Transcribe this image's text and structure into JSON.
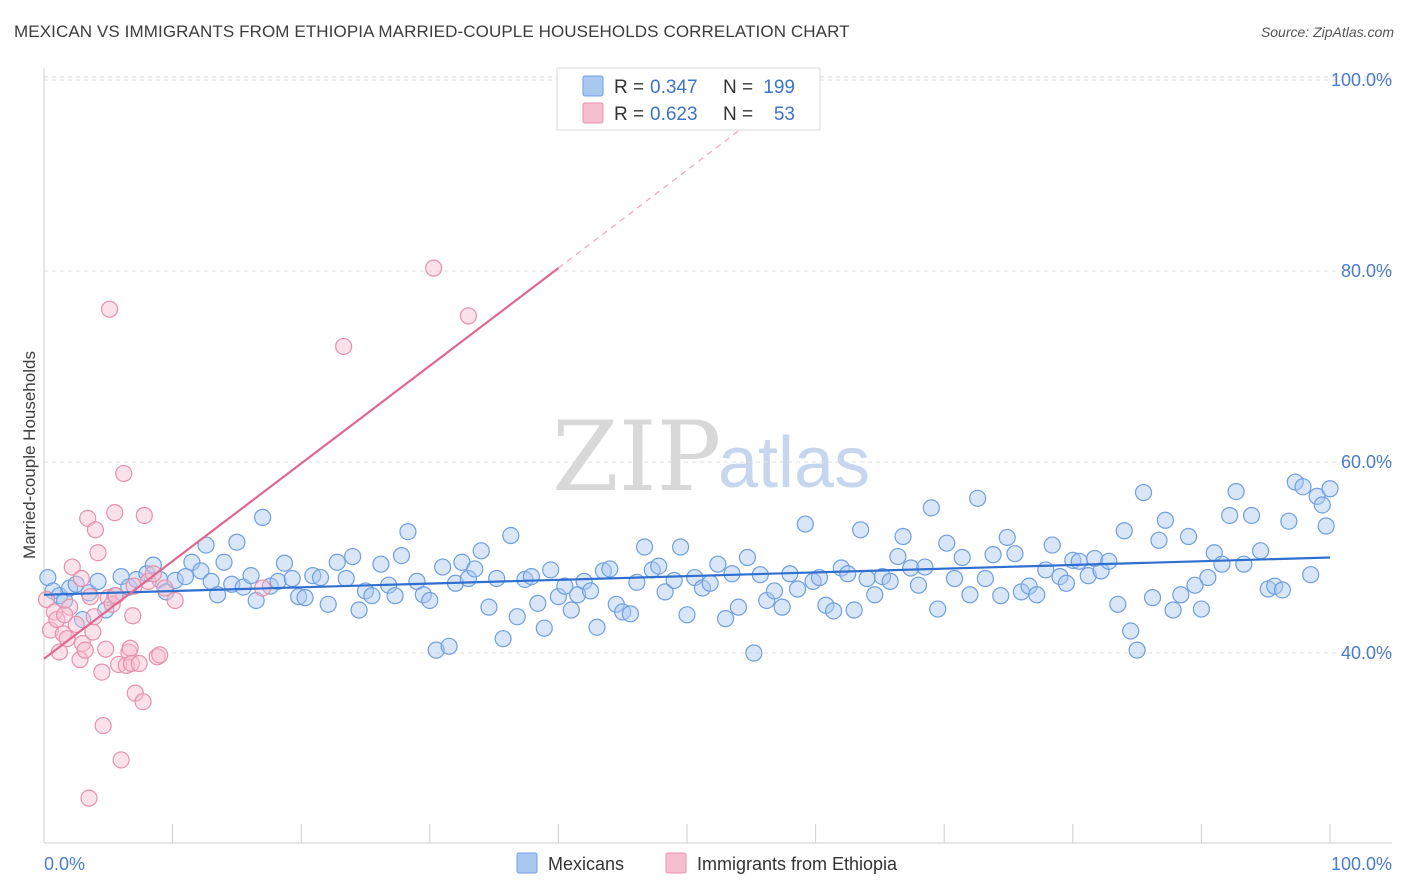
{
  "header": {
    "title": "MEXICAN VS IMMIGRANTS FROM ETHIOPIA MARRIED-COUPLE HOUSEHOLDS CORRELATION CHART",
    "source": "Source: ZipAtlas.com"
  },
  "watermark": {
    "zip": "ZIP",
    "atlas": "atlas"
  },
  "legend": {
    "rows": [
      {
        "r_label": "R =",
        "r_value": "0.347",
        "n_label": "N =",
        "n_value": "199",
        "color": "#a9c8f0",
        "border": "#6f9fe0"
      },
      {
        "r_label": "R =",
        "r_value": "0.623",
        "n_label": "N =",
        "n_value": "53",
        "color": "#f6bfd0",
        "border": "#e890aa"
      }
    ]
  },
  "bottom_legend": [
    {
      "label": "Mexicans",
      "color": "#a9c8f0",
      "border": "#6f9fe0"
    },
    {
      "label": "Immigrants from Ethiopia",
      "color": "#f6bfd0",
      "border": "#e890aa"
    }
  ],
  "chart_data": {
    "type": "scatter",
    "ylabel": "Married-couple Households",
    "xlabel": "",
    "xlim": [
      0,
      100
    ],
    "ylim": [
      17,
      100
    ],
    "x_tick_labels": [
      "0.0%",
      "100.0%"
    ],
    "y_ticks": [
      40,
      60,
      80,
      100
    ],
    "y_tick_labels": [
      "40.0%",
      "60.0%",
      "80.0%",
      "100.0%"
    ],
    "grid": true,
    "legend_position": "top-center",
    "colors": {
      "mexicans": "#6f9fe0",
      "ethiopia": "#e890aa",
      "trend_blue": "#2f6fcf",
      "trend_pink": "#e0688f"
    },
    "series": [
      {
        "name": "Mexicans",
        "trend": {
          "x": [
            0,
            100
          ],
          "y": [
            46.1,
            50.0
          ]
        },
        "points": [
          [
            0.3,
            47.9
          ],
          [
            0.7,
            46.5
          ],
          [
            1.2,
            46.0
          ],
          [
            1.6,
            45.5
          ],
          [
            2.0,
            46.8
          ],
          [
            2.5,
            47.2
          ],
          [
            3.0,
            43.5
          ],
          [
            3.5,
            46.3
          ],
          [
            4.2,
            47.5
          ],
          [
            4.8,
            44.5
          ],
          [
            5.5,
            46.0
          ],
          [
            6.0,
            48.0
          ],
          [
            6.6,
            46.9
          ],
          [
            7.2,
            47.7
          ],
          [
            8.0,
            48.3
          ],
          [
            8.5,
            49.2
          ],
          [
            9.0,
            47.7
          ],
          [
            9.5,
            46.4
          ],
          [
            10.2,
            47.6
          ],
          [
            11.0,
            48.0
          ],
          [
            11.5,
            49.5
          ],
          [
            12.2,
            48.6
          ],
          [
            12.6,
            51.3
          ],
          [
            13.0,
            47.5
          ],
          [
            13.5,
            46.1
          ],
          [
            14.0,
            49.5
          ],
          [
            14.6,
            47.2
          ],
          [
            15.0,
            51.6
          ],
          [
            15.5,
            46.9
          ],
          [
            16.1,
            48.1
          ],
          [
            16.5,
            45.5
          ],
          [
            17.0,
            54.2
          ],
          [
            17.6,
            47.0
          ],
          [
            18.2,
            47.5
          ],
          [
            18.7,
            49.4
          ],
          [
            19.3,
            47.8
          ],
          [
            19.8,
            45.9
          ],
          [
            20.3,
            45.8
          ],
          [
            20.9,
            48.1
          ],
          [
            21.5,
            47.9
          ],
          [
            22.1,
            45.1
          ],
          [
            22.8,
            49.5
          ],
          [
            23.5,
            47.8
          ],
          [
            24.0,
            50.1
          ],
          [
            24.5,
            44.5
          ],
          [
            25.0,
            46.5
          ],
          [
            25.5,
            46.0
          ],
          [
            26.2,
            49.3
          ],
          [
            26.8,
            47.1
          ],
          [
            27.3,
            46.0
          ],
          [
            27.8,
            50.2
          ],
          [
            28.3,
            52.7
          ],
          [
            29.0,
            47.5
          ],
          [
            29.5,
            46.1
          ],
          [
            30.0,
            45.5
          ],
          [
            30.5,
            40.3
          ],
          [
            31.0,
            49.0
          ],
          [
            31.5,
            40.7
          ],
          [
            32.0,
            47.3
          ],
          [
            32.5,
            49.5
          ],
          [
            33.0,
            47.8
          ],
          [
            33.5,
            48.8
          ],
          [
            34.0,
            50.7
          ],
          [
            34.6,
            44.8
          ],
          [
            35.2,
            47.8
          ],
          [
            35.7,
            41.5
          ],
          [
            36.3,
            52.3
          ],
          [
            36.8,
            43.8
          ],
          [
            37.4,
            47.7
          ],
          [
            37.9,
            48.0
          ],
          [
            38.4,
            45.2
          ],
          [
            38.9,
            42.6
          ],
          [
            39.4,
            48.7
          ],
          [
            40.0,
            45.9
          ],
          [
            40.5,
            47.0
          ],
          [
            41.0,
            44.5
          ],
          [
            41.5,
            46.1
          ],
          [
            42.0,
            47.5
          ],
          [
            42.5,
            46.5
          ],
          [
            43.0,
            42.7
          ],
          [
            43.5,
            48.6
          ],
          [
            44.0,
            48.8
          ],
          [
            44.5,
            45.1
          ],
          [
            45.0,
            44.3
          ],
          [
            45.6,
            44.1
          ],
          [
            46.1,
            47.4
          ],
          [
            46.7,
            51.1
          ],
          [
            47.3,
            48.7
          ],
          [
            47.8,
            49.1
          ],
          [
            48.3,
            46.4
          ],
          [
            49.0,
            47.6
          ],
          [
            49.5,
            51.1
          ],
          [
            50.0,
            44.0
          ],
          [
            50.6,
            47.9
          ],
          [
            51.2,
            46.8
          ],
          [
            51.8,
            47.3
          ],
          [
            52.4,
            49.3
          ],
          [
            53.0,
            43.6
          ],
          [
            53.5,
            48.3
          ],
          [
            54.0,
            44.8
          ],
          [
            54.7,
            50.0
          ],
          [
            55.2,
            40.0
          ],
          [
            55.7,
            48.2
          ],
          [
            56.2,
            45.5
          ],
          [
            56.8,
            46.5
          ],
          [
            57.4,
            44.8
          ],
          [
            58.0,
            48.3
          ],
          [
            58.6,
            46.7
          ],
          [
            59.2,
            53.5
          ],
          [
            59.8,
            47.5
          ],
          [
            60.3,
            47.9
          ],
          [
            60.8,
            45.0
          ],
          [
            61.4,
            44.4
          ],
          [
            62.0,
            48.9
          ],
          [
            62.5,
            48.3
          ],
          [
            63.0,
            44.5
          ],
          [
            63.5,
            52.9
          ],
          [
            64.0,
            47.8
          ],
          [
            64.6,
            46.1
          ],
          [
            65.2,
            48.0
          ],
          [
            65.8,
            47.5
          ],
          [
            66.4,
            50.1
          ],
          [
            66.8,
            52.2
          ],
          [
            67.4,
            48.9
          ],
          [
            68.0,
            47.1
          ],
          [
            68.5,
            49.0
          ],
          [
            69.0,
            55.2
          ],
          [
            69.5,
            44.6
          ],
          [
            70.2,
            51.5
          ],
          [
            70.8,
            47.8
          ],
          [
            71.4,
            50.0
          ],
          [
            72.0,
            46.1
          ],
          [
            72.6,
            56.2
          ],
          [
            73.2,
            47.8
          ],
          [
            73.8,
            50.3
          ],
          [
            74.4,
            46.0
          ],
          [
            74.9,
            52.1
          ],
          [
            75.5,
            50.4
          ],
          [
            76.0,
            46.4
          ],
          [
            76.6,
            47.0
          ],
          [
            77.2,
            46.1
          ],
          [
            77.9,
            48.7
          ],
          [
            78.4,
            51.3
          ],
          [
            79.0,
            48.0
          ],
          [
            79.5,
            47.3
          ],
          [
            80.0,
            49.7
          ],
          [
            80.5,
            49.6
          ],
          [
            81.2,
            48.1
          ],
          [
            81.7,
            49.9
          ],
          [
            82.2,
            48.6
          ],
          [
            82.8,
            49.6
          ],
          [
            83.5,
            45.1
          ],
          [
            84.0,
            52.8
          ],
          [
            84.5,
            42.3
          ],
          [
            85.0,
            40.3
          ],
          [
            85.5,
            56.8
          ],
          [
            86.2,
            45.8
          ],
          [
            86.7,
            51.8
          ],
          [
            87.2,
            53.9
          ],
          [
            87.8,
            44.5
          ],
          [
            88.4,
            46.1
          ],
          [
            89.0,
            52.2
          ],
          [
            89.5,
            47.1
          ],
          [
            90.0,
            44.6
          ],
          [
            90.5,
            47.9
          ],
          [
            91.0,
            50.5
          ],
          [
            91.6,
            49.3
          ],
          [
            92.2,
            54.4
          ],
          [
            92.7,
            56.9
          ],
          [
            93.3,
            49.3
          ],
          [
            93.9,
            54.4
          ],
          [
            94.6,
            50.7
          ],
          [
            95.2,
            46.7
          ],
          [
            95.7,
            47.0
          ],
          [
            96.3,
            46.6
          ],
          [
            96.8,
            53.8
          ],
          [
            97.3,
            57.9
          ],
          [
            97.9,
            57.4
          ],
          [
            98.5,
            48.2
          ],
          [
            99.0,
            56.4
          ],
          [
            99.4,
            55.5
          ],
          [
            99.7,
            53.3
          ],
          [
            100.0,
            57.2
          ]
        ]
      },
      {
        "name": "Immigrants from Ethiopia",
        "trend": {
          "x": [
            0,
            40
          ],
          "y": [
            39.4,
            80.3
          ]
        },
        "trend_dashed": {
          "x": [
            40,
            55
          ],
          "y": [
            80.3,
            95.7
          ]
        },
        "points": [
          [
            0.2,
            45.6
          ],
          [
            0.5,
            42.4
          ],
          [
            0.8,
            44.3
          ],
          [
            1.0,
            43.5
          ],
          [
            1.2,
            40.1
          ],
          [
            1.5,
            42.0
          ],
          [
            1.8,
            41.5
          ],
          [
            2.0,
            44.8
          ],
          [
            2.2,
            49.0
          ],
          [
            2.5,
            43.0
          ],
          [
            2.8,
            39.3
          ],
          [
            3.0,
            41.0
          ],
          [
            3.2,
            40.3
          ],
          [
            3.4,
            54.1
          ],
          [
            3.5,
            24.8
          ],
          [
            3.6,
            45.9
          ],
          [
            3.8,
            42.2
          ],
          [
            4.0,
            52.9
          ],
          [
            4.2,
            50.5
          ],
          [
            4.5,
            38.0
          ],
          [
            4.6,
            32.4
          ],
          [
            4.8,
            40.4
          ],
          [
            5.0,
            45.8
          ],
          [
            5.1,
            76.0
          ],
          [
            5.3,
            45.1
          ],
          [
            5.5,
            54.7
          ],
          [
            5.8,
            38.8
          ],
          [
            6.0,
            28.8
          ],
          [
            6.2,
            58.8
          ],
          [
            6.4,
            38.7
          ],
          [
            6.6,
            40.1
          ],
          [
            6.7,
            40.5
          ],
          [
            6.8,
            38.9
          ],
          [
            6.9,
            43.9
          ],
          [
            7.0,
            47.0
          ],
          [
            7.1,
            35.8
          ],
          [
            7.4,
            38.9
          ],
          [
            7.7,
            34.9
          ],
          [
            7.8,
            54.4
          ],
          [
            8.1,
            47.5
          ],
          [
            8.5,
            48.3
          ],
          [
            8.8,
            39.6
          ],
          [
            9.0,
            39.8
          ],
          [
            9.4,
            46.8
          ],
          [
            10.2,
            45.5
          ],
          [
            17.0,
            46.8
          ],
          [
            23.3,
            72.1
          ],
          [
            30.3,
            80.3
          ],
          [
            33.0,
            75.3
          ],
          [
            1.6,
            44.0
          ],
          [
            2.9,
            47.8
          ],
          [
            5.6,
            46.0
          ],
          [
            3.9,
            43.8
          ]
        ]
      }
    ]
  }
}
